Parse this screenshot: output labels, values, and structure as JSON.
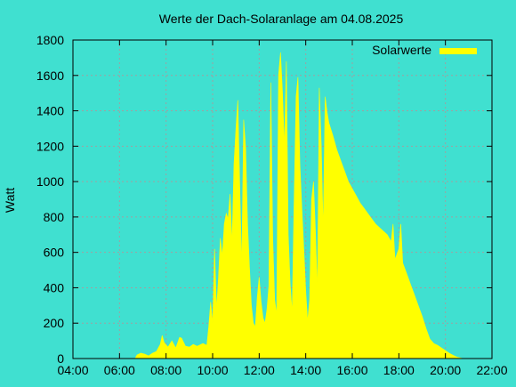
{
  "colors": {
    "background": "#40e0d0",
    "area": "#ffff00",
    "grid": "#a0a0a0",
    "frame": "#000000"
  },
  "chart_data": {
    "type": "area",
    "title": "Werte der Dach-Solaranlage am 04.08.2025",
    "xlabel": "",
    "ylabel": "Watt",
    "xlim": [
      "04:00",
      "22:00"
    ],
    "ylim": [
      0,
      1800
    ],
    "x_ticks": [
      "04:00",
      "06:00",
      "08:00",
      "10:00",
      "12:00",
      "14:00",
      "16:00",
      "18:00",
      "20:00",
      "22:00"
    ],
    "y_ticks": [
      "0",
      "200",
      "400",
      "600",
      "800",
      "1000",
      "1200",
      "1400",
      "1600",
      "1800"
    ],
    "grid": true,
    "legend_position": "top-right",
    "series": [
      {
        "name": "Solarwerte",
        "color": "#ffff00",
        "points": [
          [
            "06:40",
            0
          ],
          [
            "06:45",
            20
          ],
          [
            "06:55",
            30
          ],
          [
            "07:05",
            25
          ],
          [
            "07:15",
            15
          ],
          [
            "07:25",
            30
          ],
          [
            "07:35",
            40
          ],
          [
            "07:45",
            80
          ],
          [
            "07:50",
            130
          ],
          [
            "07:55",
            90
          ],
          [
            "08:05",
            65
          ],
          [
            "08:15",
            100
          ],
          [
            "08:25",
            60
          ],
          [
            "08:35",
            120
          ],
          [
            "08:40",
            115
          ],
          [
            "08:50",
            70
          ],
          [
            "09:00",
            65
          ],
          [
            "09:10",
            80
          ],
          [
            "09:20",
            70
          ],
          [
            "09:35",
            85
          ],
          [
            "09:45",
            75
          ],
          [
            "09:50",
            180
          ],
          [
            "09:55",
            320
          ],
          [
            "10:00",
            200
          ],
          [
            "10:05",
            620
          ],
          [
            "10:10",
            280
          ],
          [
            "10:15",
            450
          ],
          [
            "10:20",
            680
          ],
          [
            "10:25",
            580
          ],
          [
            "10:30",
            760
          ],
          [
            "10:35",
            820
          ],
          [
            "10:40",
            790
          ],
          [
            "10:45",
            930
          ],
          [
            "10:50",
            650
          ],
          [
            "10:55",
            1100
          ],
          [
            "11:00",
            1300
          ],
          [
            "11:05",
            1460
          ],
          [
            "11:10",
            980
          ],
          [
            "11:15",
            520
          ],
          [
            "11:20",
            1350
          ],
          [
            "11:25",
            1190
          ],
          [
            "11:30",
            760
          ],
          [
            "11:35",
            520
          ],
          [
            "11:40",
            300
          ],
          [
            "11:45",
            200
          ],
          [
            "11:50",
            180
          ],
          [
            "11:55",
            350
          ],
          [
            "12:00",
            460
          ],
          [
            "12:05",
            320
          ],
          [
            "12:10",
            230
          ],
          [
            "12:15",
            200
          ],
          [
            "12:20",
            280
          ],
          [
            "12:25",
            410
          ],
          [
            "12:30",
            1560
          ],
          [
            "12:35",
            680
          ],
          [
            "12:40",
            330
          ],
          [
            "12:45",
            250
          ],
          [
            "12:50",
            1600
          ],
          [
            "12:55",
            1730
          ],
          [
            "13:00",
            1510
          ],
          [
            "13:05",
            1200
          ],
          [
            "13:10",
            1680
          ],
          [
            "13:15",
            700
          ],
          [
            "13:20",
            420
          ],
          [
            "13:25",
            260
          ],
          [
            "13:30",
            900
          ],
          [
            "13:35",
            1480
          ],
          [
            "13:40",
            1590
          ],
          [
            "13:45",
            1100
          ],
          [
            "13:50",
            850
          ],
          [
            "13:55",
            620
          ],
          [
            "14:00",
            380
          ],
          [
            "14:05",
            210
          ],
          [
            "14:10",
            330
          ],
          [
            "14:15",
            900
          ],
          [
            "14:20",
            1000
          ],
          [
            "14:25",
            720
          ],
          [
            "14:30",
            380
          ],
          [
            "14:35",
            1530
          ],
          [
            "14:40",
            1210
          ],
          [
            "14:45",
            730
          ],
          [
            "14:50",
            1480
          ],
          [
            "14:55",
            1390
          ],
          [
            "15:00",
            1330
          ],
          [
            "15:10",
            1260
          ],
          [
            "15:20",
            1180
          ],
          [
            "15:30",
            1120
          ],
          [
            "15:40",
            1060
          ],
          [
            "15:50",
            1000
          ],
          [
            "16:00",
            960
          ],
          [
            "16:10",
            920
          ],
          [
            "16:20",
            880
          ],
          [
            "16:30",
            850
          ],
          [
            "16:40",
            820
          ],
          [
            "16:50",
            790
          ],
          [
            "17:00",
            760
          ],
          [
            "17:10",
            740
          ],
          [
            "17:20",
            720
          ],
          [
            "17:30",
            700
          ],
          [
            "17:40",
            660
          ],
          [
            "17:45",
            760
          ],
          [
            "17:50",
            560
          ],
          [
            "18:00",
            620
          ],
          [
            "18:05",
            760
          ],
          [
            "18:10",
            540
          ],
          [
            "18:20",
            480
          ],
          [
            "18:30",
            420
          ],
          [
            "18:40",
            360
          ],
          [
            "18:50",
            300
          ],
          [
            "19:00",
            240
          ],
          [
            "19:10",
            170
          ],
          [
            "19:20",
            110
          ],
          [
            "19:30",
            85
          ],
          [
            "19:40",
            75
          ],
          [
            "19:50",
            60
          ],
          [
            "20:00",
            45
          ],
          [
            "20:10",
            30
          ],
          [
            "20:20",
            18
          ],
          [
            "20:30",
            8
          ],
          [
            "20:40",
            3
          ],
          [
            "20:45",
            0
          ]
        ]
      }
    ]
  }
}
